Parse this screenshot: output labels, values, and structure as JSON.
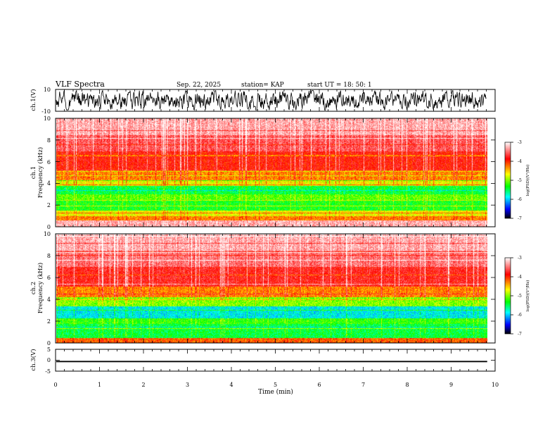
{
  "header": {
    "title": "VLF Spectra",
    "date": "Sep. 22, 2025",
    "station": "station= KAP",
    "start": "start  UT  =   18: 50: 1"
  },
  "colors": {
    "background": "#ffffff",
    "axes": "#000000",
    "trace": "#000000"
  },
  "chart_data": [
    {
      "type": "line",
      "name": "ch1-waveform",
      "ylabel": "ch.1(V)",
      "xlim": [
        0,
        9.8
      ],
      "ylim": [
        -10,
        10
      ],
      "yticks": [
        -10,
        10
      ],
      "ytick_labels": [
        "-10",
        "10"
      ]
    },
    {
      "type": "heatmap",
      "name": "ch1-spectrogram",
      "ylabel_line1": "ch.1",
      "ylabel_line2": "Frequency  (kHz)",
      "xlim": [
        0,
        10
      ],
      "ylim": [
        0,
        10
      ],
      "yticks": [
        0,
        2,
        4,
        6,
        8,
        10
      ],
      "ytick_labels": [
        "0",
        "2",
        "4",
        "6",
        "8",
        "10"
      ],
      "data_extent_min": 9.8,
      "colorbar": {
        "label": "log(PSD)(V²/Hz)",
        "range": [
          -7,
          -3
        ],
        "ticks": [
          -7,
          -6,
          -5,
          -4,
          -3
        ],
        "tick_labels": [
          "-7",
          "-6",
          "-5",
          "-4",
          "-3"
        ]
      },
      "band_levels": [
        {
          "f": [
            0,
            0.6
          ],
          "level": -3.3
        },
        {
          "f": [
            0.6,
            1.0
          ],
          "level": -4.3
        },
        {
          "f": [
            1.0,
            1.5
          ],
          "level": -4.7
        },
        {
          "f": [
            1.5,
            2.5
          ],
          "level": -5.3
        },
        {
          "f": [
            2.5,
            3.0
          ],
          "level": -5.1
        },
        {
          "f": [
            3.0,
            3.8
          ],
          "level": -5.4
        },
        {
          "f": [
            3.8,
            4.3
          ],
          "level": -4.7
        },
        {
          "f": [
            4.3,
            5.3
          ],
          "level": -4.3
        },
        {
          "f": [
            5.3,
            7.0
          ],
          "level": -3.9
        },
        {
          "f": [
            7.0,
            8.5
          ],
          "level": -3.6
        },
        {
          "f": [
            8.5,
            10.0
          ],
          "level": -3.3
        }
      ]
    },
    {
      "type": "heatmap",
      "name": "ch2-spectrogram",
      "ylabel_line1": "ch.2",
      "ylabel_line2": "Frequency  (kHz)",
      "xlim": [
        0,
        10
      ],
      "ylim": [
        0,
        10
      ],
      "yticks": [
        0,
        2,
        4,
        6,
        8,
        10
      ],
      "ytick_labels": [
        "0",
        "2",
        "4",
        "6",
        "8",
        "10"
      ],
      "data_extent_min": 9.8,
      "colorbar": {
        "label": "log(PSD)(V²/Hz)",
        "range": [
          -7,
          -3
        ],
        "ticks": [
          -7,
          -6,
          -5,
          -4,
          -3
        ],
        "tick_labels": [
          "-7",
          "-6",
          "-5",
          "-4",
          "-3"
        ]
      },
      "band_levels": [
        {
          "f": [
            0,
            0.5
          ],
          "level": -4.2
        },
        {
          "f": [
            0.5,
            1.8
          ],
          "level": -5.4
        },
        {
          "f": [
            1.8,
            2.3
          ],
          "level": -5.2
        },
        {
          "f": [
            2.3,
            3.4
          ],
          "level": -5.8
        },
        {
          "f": [
            3.4,
            4.2
          ],
          "level": -5.0
        },
        {
          "f": [
            4.2,
            5.2
          ],
          "level": -4.3
        },
        {
          "f": [
            5.2,
            7.0
          ],
          "level": -3.8
        },
        {
          "f": [
            7.0,
            8.5
          ],
          "level": -3.5
        },
        {
          "f": [
            8.5,
            10.0
          ],
          "level": -3.3
        }
      ]
    },
    {
      "type": "line",
      "name": "ch3-waveform",
      "ylabel": "ch.3(V)",
      "xlabel": "Time  (min)",
      "xlim": [
        0,
        10
      ],
      "ylim": [
        -5,
        5
      ],
      "yticks": [
        -5,
        0,
        5
      ],
      "ytick_labels": [
        "-5",
        "0",
        "5"
      ],
      "xticks": [
        0,
        1,
        2,
        3,
        4,
        5,
        6,
        7,
        8,
        9,
        10
      ],
      "xtick_labels": [
        "0",
        "1",
        "2",
        "3",
        "4",
        "5",
        "6",
        "7",
        "8",
        "9",
        "10"
      ],
      "level_band": [
        -0.9,
        -0.3
      ]
    }
  ]
}
